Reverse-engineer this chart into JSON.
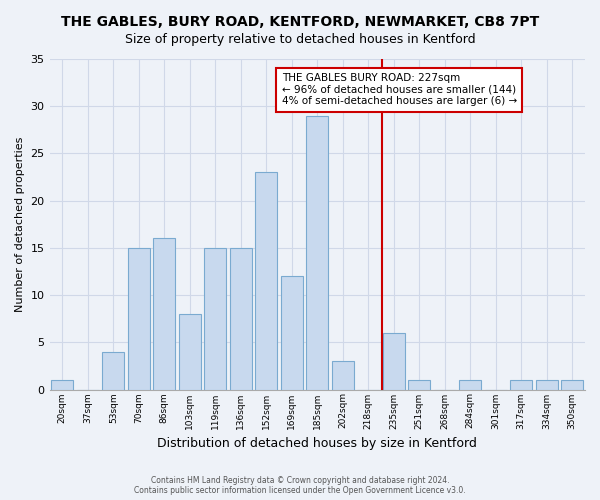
{
  "title": "THE GABLES, BURY ROAD, KENTFORD, NEWMARKET, CB8 7PT",
  "subtitle": "Size of property relative to detached houses in Kentford",
  "xlabel": "Distribution of detached houses by size in Kentford",
  "ylabel": "Number of detached properties",
  "bar_labels": [
    "20sqm",
    "37sqm",
    "53sqm",
    "70sqm",
    "86sqm",
    "103sqm",
    "119sqm",
    "136sqm",
    "152sqm",
    "169sqm",
    "185sqm",
    "202sqm",
    "218sqm",
    "235sqm",
    "251sqm",
    "268sqm",
    "284sqm",
    "301sqm",
    "317sqm",
    "334sqm",
    "350sqm"
  ],
  "bar_values": [
    1,
    0,
    4,
    15,
    16,
    8,
    15,
    15,
    23,
    12,
    29,
    3,
    0,
    6,
    1,
    0,
    1,
    0,
    1,
    1,
    1
  ],
  "bar_color": "#c8d9ee",
  "bar_edge_color": "#7aaad0",
  "ylim": [
    0,
    35
  ],
  "yticks": [
    0,
    5,
    10,
    15,
    20,
    25,
    30,
    35
  ],
  "annotation_text_line1": "THE GABLES BURY ROAD: 227sqm",
  "annotation_text_line2": "← 96% of detached houses are smaller (144)",
  "annotation_text_line3": "4% of semi-detached houses are larger (6) →",
  "vline_color": "#cc0000",
  "footer_line1": "Contains HM Land Registry data © Crown copyright and database right 2024.",
  "footer_line2": "Contains public sector information licensed under the Open Government Licence v3.0.",
  "bg_color": "#eef2f8",
  "grid_color": "#d0d8e8",
  "title_fontsize": 10,
  "subtitle_fontsize": 9
}
